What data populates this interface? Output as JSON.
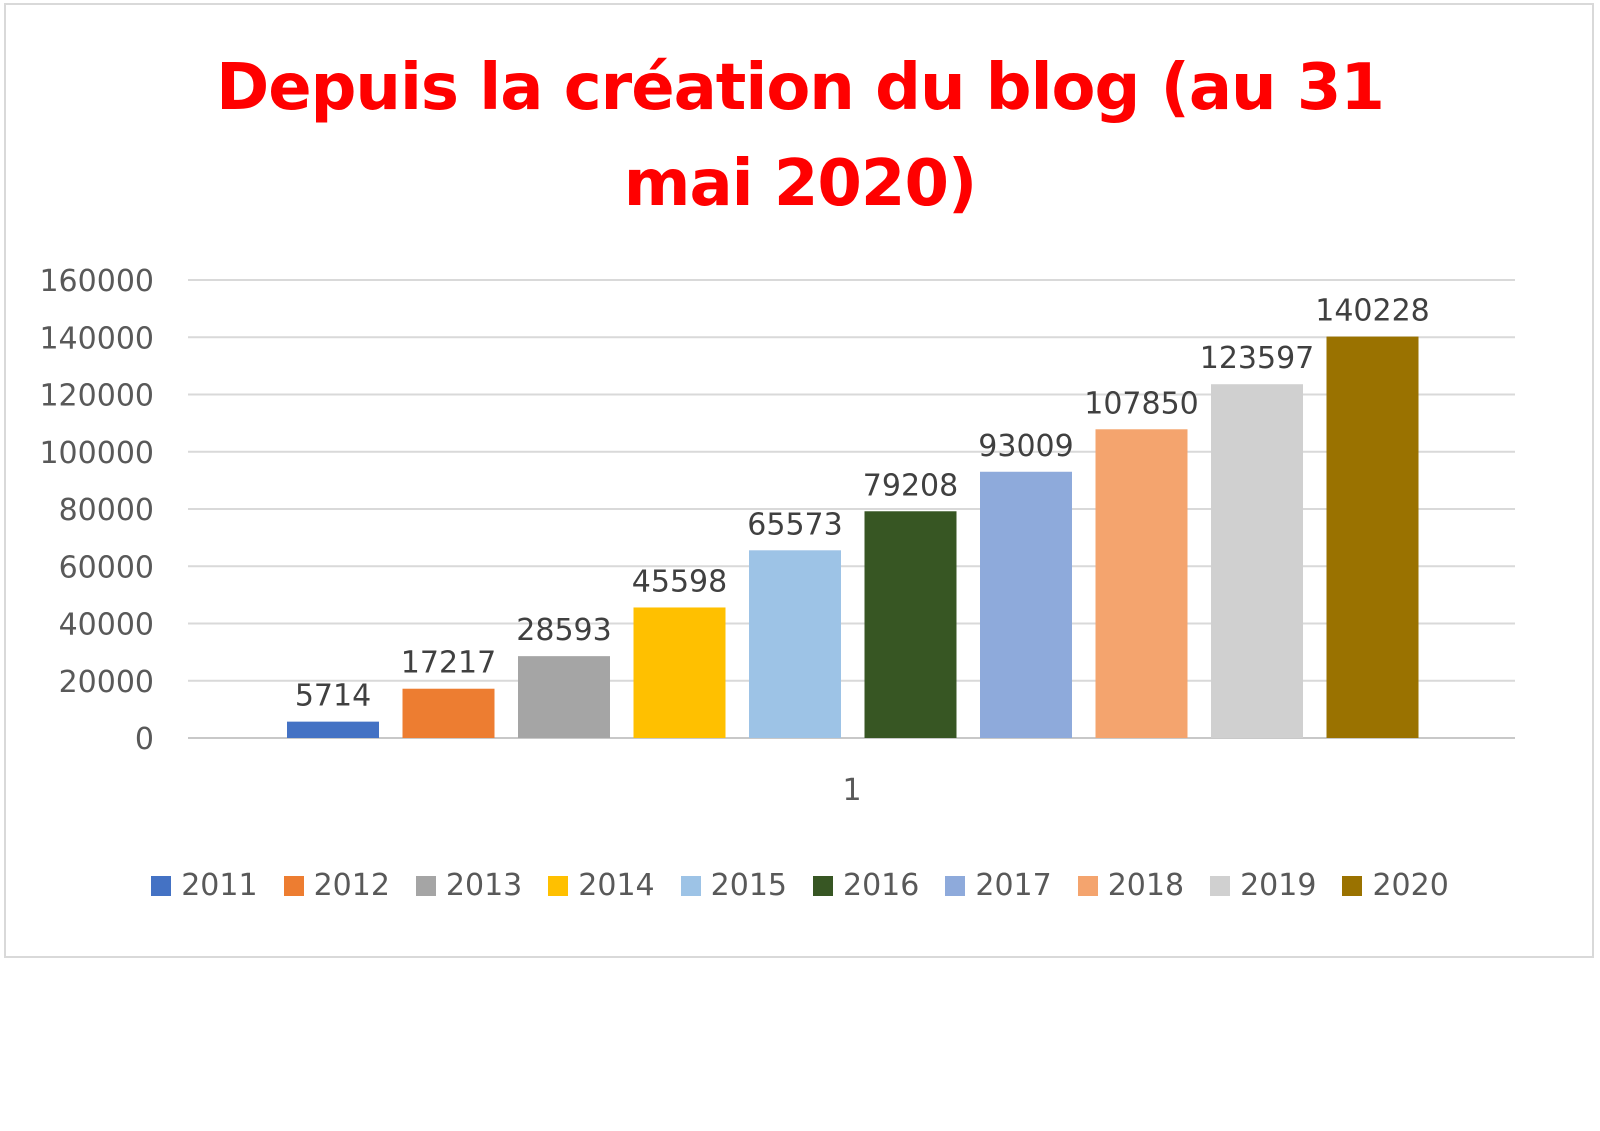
{
  "chart_data": {
    "type": "bar",
    "title": "Depuis la création du blog (au 31 mai 2020)",
    "categories": [
      "1"
    ],
    "series": [
      {
        "name": "2011",
        "values": [
          5714
        ],
        "color": "#4472c4"
      },
      {
        "name": "2012",
        "values": [
          17217
        ],
        "color": "#ed7d31"
      },
      {
        "name": "2013",
        "values": [
          28593
        ],
        "color": "#a5a5a5"
      },
      {
        "name": "2014",
        "values": [
          45598
        ],
        "color": "#ffc000"
      },
      {
        "name": "2015",
        "values": [
          65573
        ],
        "color": "#9dc3e6"
      },
      {
        "name": "2016",
        "values": [
          79208
        ],
        "color": "#375623"
      },
      {
        "name": "2017",
        "values": [
          93009
        ],
        "color": "#8eaadb"
      },
      {
        "name": "2018",
        "values": [
          107850
        ],
        "color": "#f4a46e"
      },
      {
        "name": "2019",
        "values": [
          123597
        ],
        "color": "#d0d0d0"
      },
      {
        "name": "2020",
        "values": [
          140228
        ],
        "color": "#9a7200"
      }
    ],
    "ylim": [
      0,
      160000
    ],
    "yticks": [
      0,
      20000,
      40000,
      60000,
      80000,
      100000,
      120000,
      140000,
      160000
    ],
    "grid": true,
    "legend_position": "bottom",
    "data_labels": true
  }
}
